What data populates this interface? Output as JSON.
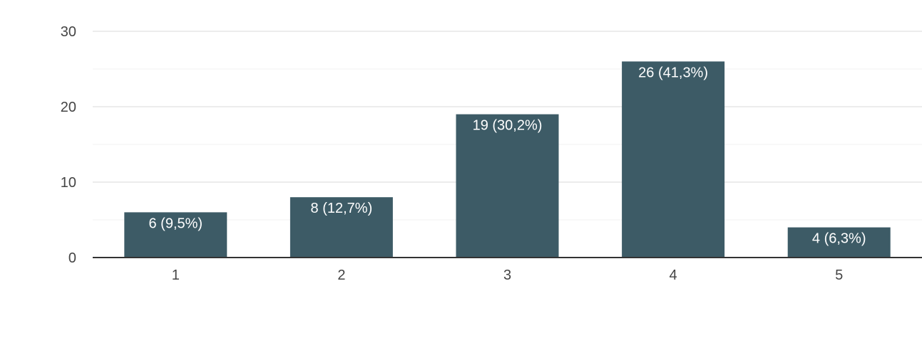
{
  "chart_data": {
    "type": "bar",
    "title": "",
    "xlabel": "",
    "ylabel": "",
    "categories": [
      "1",
      "2",
      "3",
      "4",
      "5"
    ],
    "values": [
      6,
      8,
      19,
      26,
      4
    ],
    "data_labels": [
      "6 (9,5%)",
      "8 (12,7%)",
      "19 (30,2%)",
      "26 (41,3%)",
      "4 (6,3%)"
    ],
    "ylim": [
      0,
      30
    ],
    "yticks": [
      0,
      10,
      20,
      30
    ],
    "y_tick_labels": [
      "0",
      "10",
      "20",
      "30"
    ],
    "grid": true,
    "legend": "none",
    "bar_color": "#3d5b66",
    "grid_color": "#e6e6e6",
    "axis_color": "#333333"
  }
}
